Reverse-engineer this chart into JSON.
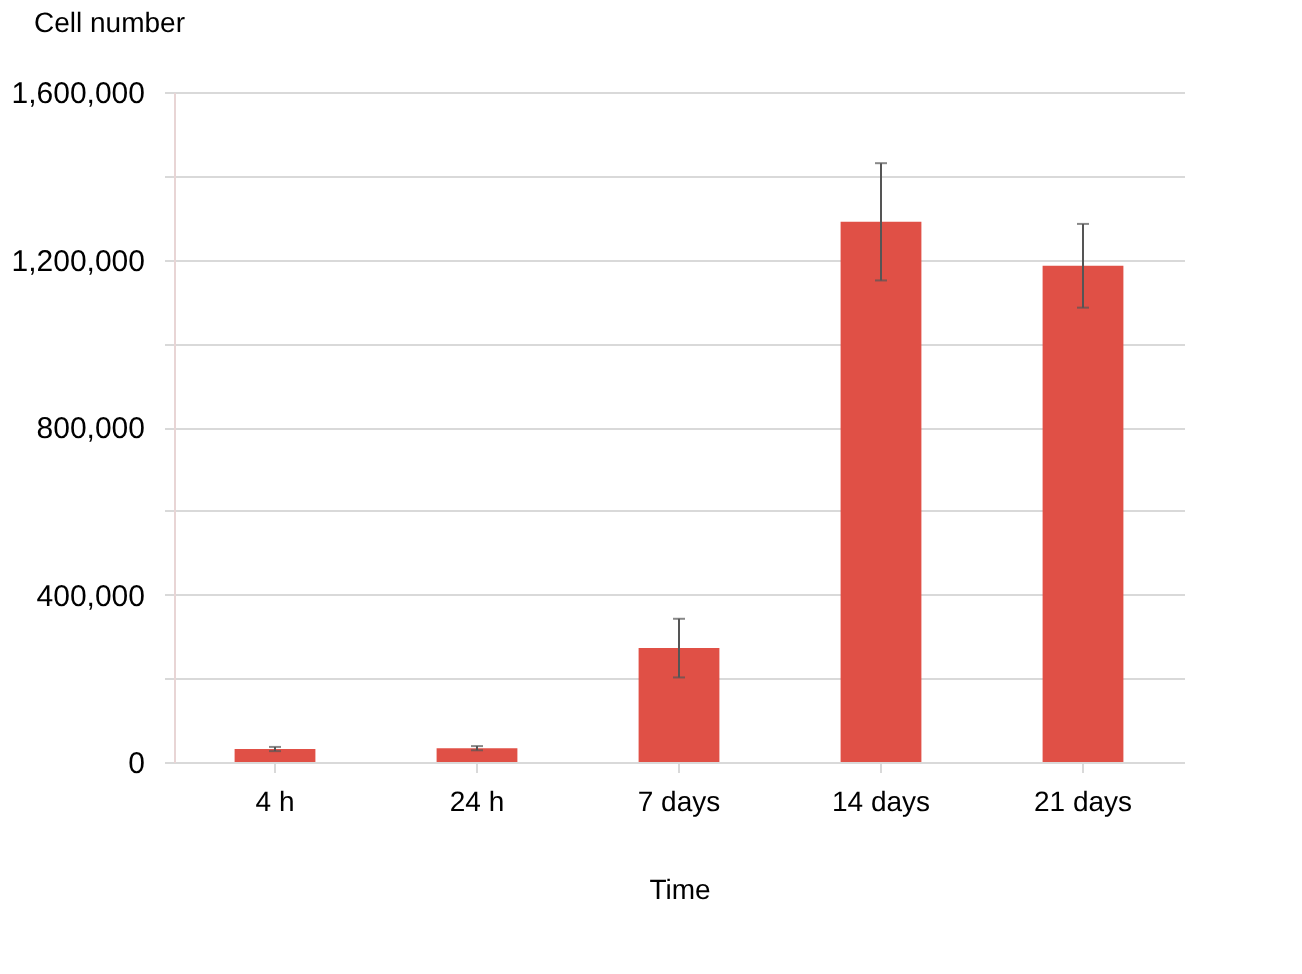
{
  "chart_data": {
    "type": "bar",
    "ylabel": "Cell number",
    "xlabel": "Time",
    "categories": [
      "4 h",
      "24 h",
      "7 days",
      "14 days",
      "21 days"
    ],
    "series": [
      {
        "color": "#e05046",
        "values": [
          31000,
          33000,
          272000,
          1290000,
          1185000
        ],
        "errors": [
          5000,
          5000,
          70000,
          140000,
          100000
        ]
      }
    ],
    "ylim": [
      0,
      1600000
    ],
    "yticks": [
      0,
      {
        "value": 200000,
        "label": null
      },
      {
        "value": 400000,
        "label": "400,000"
      },
      {
        "value": 600000,
        "label": null
      },
      {
        "value": 800000,
        "label": "800,000"
      },
      {
        "value": 1000000,
        "label": null
      },
      {
        "value": 1200000,
        "label": "1,200,000"
      },
      {
        "value": 1400000,
        "label": null
      },
      {
        "value": 1600000,
        "label": "1,600,000"
      }
    ],
    "grid": "y"
  }
}
